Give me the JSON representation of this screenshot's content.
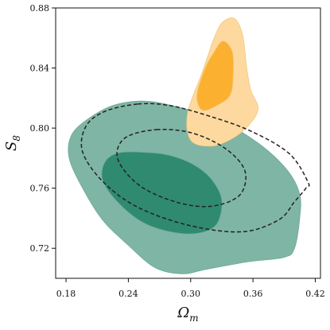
{
  "chart_data": {
    "type": "contour",
    "xlabel": {
      "main": "Ω",
      "sub": "m"
    },
    "ylabel": {
      "main": "S",
      "sub": "8"
    },
    "xlim": [
      0.17,
      0.425
    ],
    "ylim": [
      0.7,
      0.88
    ],
    "xticks": [
      0.18,
      0.24,
      0.3,
      0.36,
      0.42
    ],
    "yticks": [
      0.72,
      0.76,
      0.8,
      0.84,
      0.88
    ],
    "xtick_labels": [
      "0.18",
      "0.24",
      "0.30",
      "0.36",
      "0.42"
    ],
    "ytick_labels": [
      "0.72",
      "0.76",
      "0.80",
      "0.84",
      "0.88"
    ],
    "grid": false,
    "legend": "none",
    "colors": {
      "green_outer": "#7fb5a4",
      "green_inner": "#2f8a70",
      "orange_outer": "#fdd9a0",
      "orange_inner": "#fbb02f",
      "dashed": "#222222"
    },
    "contours": [
      {
        "id": "green-68",
        "style": "filled",
        "level": "inner",
        "color": "#2f8a70",
        "points": [
          [
            0.257,
            0.7838
          ],
          [
            0.279,
            0.782
          ],
          [
            0.302,
            0.776
          ],
          [
            0.32,
            0.766
          ],
          [
            0.33,
            0.752
          ],
          [
            0.325,
            0.736
          ],
          [
            0.307,
            0.73
          ],
          [
            0.28,
            0.731
          ],
          [
            0.252,
            0.738
          ],
          [
            0.228,
            0.752
          ],
          [
            0.215,
            0.766
          ],
          [
            0.218,
            0.778
          ],
          [
            0.232,
            0.7837
          ]
        ]
      },
      {
        "id": "green-95",
        "style": "filled",
        "level": "outer",
        "color": "#7fb5a4",
        "points": [
          [
            0.2,
            0.8055
          ],
          [
            0.225,
            0.815
          ],
          [
            0.255,
            0.818
          ],
          [
            0.288,
            0.814
          ],
          [
            0.328,
            0.805
          ],
          [
            0.365,
            0.79
          ],
          [
            0.393,
            0.772
          ],
          [
            0.405,
            0.756
          ],
          [
            0.405,
            0.74
          ],
          [
            0.4,
            0.72
          ],
          [
            0.39,
            0.714
          ],
          [
            0.355,
            0.711
          ],
          [
            0.315,
            0.706
          ],
          [
            0.292,
            0.703
          ],
          [
            0.266,
            0.707
          ],
          [
            0.24,
            0.722
          ],
          [
            0.215,
            0.739
          ],
          [
            0.196,
            0.76
          ],
          [
            0.183,
            0.78
          ],
          [
            0.185,
            0.795
          ]
        ]
      },
      {
        "id": "orange-95",
        "style": "filled",
        "level": "outer",
        "color": "#fdd9a0",
        "points": [
          [
            0.342,
            0.873
          ],
          [
            0.35,
            0.862
          ],
          [
            0.354,
            0.84
          ],
          [
            0.358,
            0.825
          ],
          [
            0.365,
            0.813
          ],
          [
            0.356,
            0.802
          ],
          [
            0.34,
            0.793
          ],
          [
            0.32,
            0.788
          ],
          [
            0.3,
            0.792
          ],
          [
            0.297,
            0.81
          ],
          [
            0.31,
            0.835
          ],
          [
            0.317,
            0.849
          ],
          [
            0.322,
            0.859
          ],
          [
            0.33,
            0.87
          ]
        ]
      },
      {
        "id": "orange-68",
        "style": "filled",
        "level": "inner",
        "color": "#fbb02f",
        "points": [
          [
            0.331,
            0.858
          ],
          [
            0.34,
            0.851
          ],
          [
            0.341,
            0.836
          ],
          [
            0.338,
            0.822
          ],
          [
            0.325,
            0.815
          ],
          [
            0.311,
            0.812
          ],
          [
            0.306,
            0.822
          ],
          [
            0.314,
            0.84
          ],
          [
            0.322,
            0.85
          ]
        ]
      },
      {
        "id": "dashed-95",
        "style": "dashed",
        "level": "outer",
        "color": "#222222",
        "points": [
          [
            0.249,
            0.816
          ],
          [
            0.28,
            0.815
          ],
          [
            0.318,
            0.808
          ],
          [
            0.358,
            0.798
          ],
          [
            0.395,
            0.783
          ],
          [
            0.413,
            0.764
          ],
          [
            0.411,
            0.76
          ],
          [
            0.4,
            0.751
          ],
          [
            0.385,
            0.739
          ],
          [
            0.35,
            0.731
          ],
          [
            0.3,
            0.735
          ],
          [
            0.25,
            0.747
          ],
          [
            0.216,
            0.764
          ],
          [
            0.196,
            0.784
          ],
          [
            0.199,
            0.801
          ],
          [
            0.217,
            0.811
          ]
        ]
      },
      {
        "id": "dashed-68",
        "style": "dashed",
        "level": "inner",
        "color": "#222222",
        "points": [
          [
            0.267,
            0.799
          ],
          [
            0.3,
            0.797
          ],
          [
            0.33,
            0.788
          ],
          [
            0.349,
            0.776
          ],
          [
            0.353,
            0.765
          ],
          [
            0.345,
            0.754
          ],
          [
            0.32,
            0.748
          ],
          [
            0.29,
            0.75
          ],
          [
            0.257,
            0.759
          ],
          [
            0.237,
            0.771
          ],
          [
            0.229,
            0.783
          ],
          [
            0.238,
            0.794
          ]
        ]
      }
    ]
  }
}
